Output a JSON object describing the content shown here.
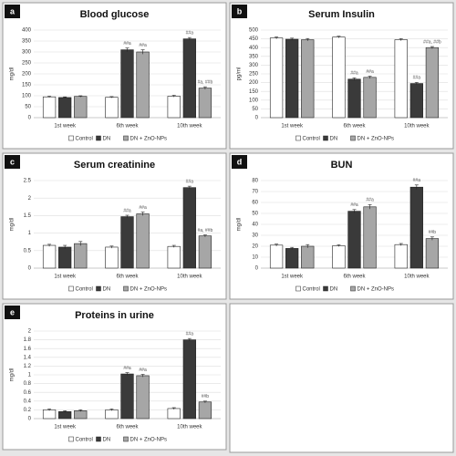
{
  "chart_data": [
    {
      "type": "bar",
      "panel_label": "a",
      "title": "Blood glucose",
      "y_label": "mg/dl",
      "categories": [
        "1st week",
        "6th week",
        "10th week"
      ],
      "series": [
        {
          "name": "Control",
          "color": "#ffffff",
          "values": [
            95,
            93,
            98
          ],
          "errors": [
            3,
            3,
            4
          ],
          "annotations": [
            null,
            null,
            null
          ]
        },
        {
          "name": "DN",
          "color": "#3a3a3a",
          "values": [
            92,
            310,
            360
          ],
          "errors": [
            3,
            8,
            6
          ],
          "annotations": [
            null,
            "##a",
            "##a"
          ]
        },
        {
          "name": "DN + ZnO-NPs",
          "color": "#a6a6a6",
          "values": [
            97,
            300,
            135
          ],
          "errors": [
            3,
            10,
            6
          ],
          "annotations": [
            null,
            "##a",
            "#a, ##b"
          ]
        }
      ],
      "ylim": [
        0,
        400
      ],
      "yticks": [
        0,
        50,
        100,
        150,
        200,
        250,
        300,
        350,
        400
      ],
      "grid": true
    },
    {
      "type": "bar",
      "panel_label": "b",
      "title": "Serum Insulin",
      "y_label": "pg/ml",
      "categories": [
        "1st week",
        "6th week",
        "10th week"
      ],
      "series": [
        {
          "name": "Control",
          "color": "#ffffff",
          "values": [
            455,
            460,
            445
          ],
          "errors": [
            6,
            5,
            6
          ],
          "annotations": [
            null,
            null,
            null
          ]
        },
        {
          "name": "DN",
          "color": "#3a3a3a",
          "values": [
            448,
            220,
            195
          ],
          "errors": [
            6,
            7,
            6
          ],
          "annotations": [
            null,
            "##a",
            "##a"
          ]
        },
        {
          "name": "DN + ZnO-NPs",
          "color": "#a6a6a6",
          "values": [
            445,
            230,
            400
          ],
          "errors": [
            7,
            7,
            6
          ],
          "annotations": [
            null,
            "##a",
            "##a, ##b"
          ]
        }
      ],
      "ylim": [
        0,
        500
      ],
      "yticks": [
        0,
        50,
        100,
        150,
        200,
        250,
        300,
        350,
        400,
        450,
        500
      ],
      "grid": true
    },
    {
      "type": "bar",
      "panel_label": "c",
      "title": "Serum creatinine",
      "y_label": "mg/dl",
      "categories": [
        "1st week",
        "6th week",
        "10th week"
      ],
      "series": [
        {
          "name": "Control",
          "color": "#ffffff",
          "values": [
            0.65,
            0.6,
            0.62
          ],
          "errors": [
            0.03,
            0.03,
            0.03
          ],
          "annotations": [
            null,
            null,
            null
          ]
        },
        {
          "name": "DN",
          "color": "#3a3a3a",
          "values": [
            0.6,
            1.47,
            2.3
          ],
          "errors": [
            0.05,
            0.04,
            0.04
          ],
          "annotations": [
            null,
            "##a",
            "##a"
          ]
        },
        {
          "name": "DN + ZnO-NPs",
          "color": "#a6a6a6",
          "values": [
            0.7,
            1.55,
            0.92
          ],
          "errors": [
            0.06,
            0.05,
            0.03
          ],
          "annotations": [
            null,
            "##a",
            "#a, ##b"
          ]
        }
      ],
      "ylim": [
        0,
        2.5
      ],
      "yticks": [
        0,
        0.5,
        1,
        1.5,
        2,
        2.5
      ],
      "grid": true
    },
    {
      "type": "bar",
      "panel_label": "d",
      "title": "BUN",
      "y_label": "mg/dl",
      "categories": [
        "1st week",
        "6th week",
        "10th week"
      ],
      "series": [
        {
          "name": "Control",
          "color": "#ffffff",
          "values": [
            21,
            20.5,
            21.5
          ],
          "errors": [
            1,
            0.8,
            1
          ],
          "annotations": [
            null,
            null,
            null
          ]
        },
        {
          "name": "DN",
          "color": "#3a3a3a",
          "values": [
            18,
            52,
            74
          ],
          "errors": [
            1,
            1.5,
            2
          ],
          "annotations": [
            null,
            "##a",
            "##a"
          ]
        },
        {
          "name": "DN + ZnO-NPs",
          "color": "#a6a6a6",
          "values": [
            20,
            56,
            27
          ],
          "errors": [
            1.5,
            2,
            1.5
          ],
          "annotations": [
            null,
            "##a",
            "##b"
          ]
        }
      ],
      "ylim": [
        0,
        80
      ],
      "yticks": [
        0,
        10,
        20,
        30,
        40,
        50,
        60,
        70,
        80
      ],
      "grid": true
    },
    {
      "type": "bar",
      "panel_label": "e",
      "title": "Proteins in urine",
      "y_label": "mg/dl",
      "categories": [
        "1st week",
        "6th week",
        "10th week"
      ],
      "series": [
        {
          "name": "Control",
          "color": "#ffffff",
          "values": [
            0.2,
            0.2,
            0.23
          ],
          "errors": [
            0.02,
            0.02,
            0.02
          ],
          "annotations": [
            null,
            null,
            null
          ]
        },
        {
          "name": "DN",
          "color": "#3a3a3a",
          "values": [
            0.16,
            1.02,
            1.8
          ],
          "errors": [
            0.02,
            0.03,
            0.03
          ],
          "annotations": [
            null,
            "##a",
            "##a"
          ]
        },
        {
          "name": "DN + ZnO-NPs",
          "color": "#a6a6a6",
          "values": [
            0.18,
            0.98,
            0.38
          ],
          "errors": [
            0.02,
            0.03,
            0.02
          ],
          "annotations": [
            null,
            "##a",
            "##b"
          ]
        }
      ],
      "ylim": [
        0,
        2
      ],
      "yticks": [
        0,
        0.2,
        0.4,
        0.6,
        0.8,
        1,
        1.2,
        1.4,
        1.6,
        1.8,
        2
      ],
      "grid": true
    }
  ]
}
